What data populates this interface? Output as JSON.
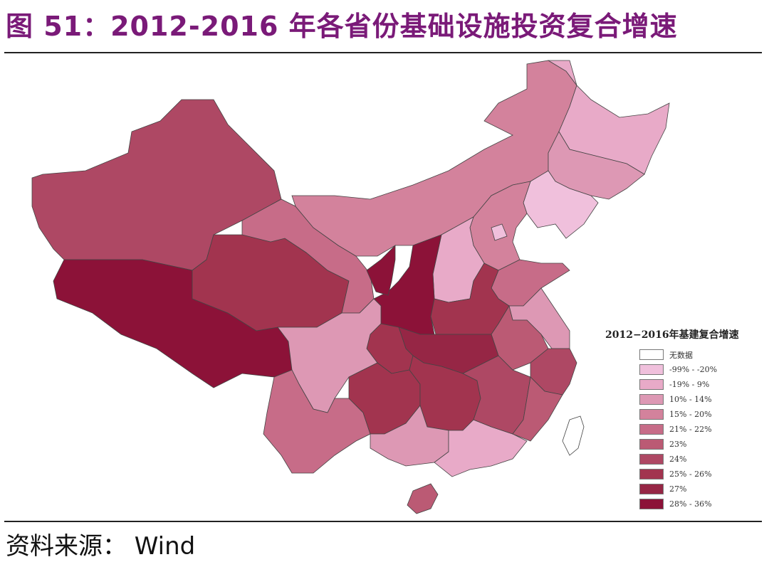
{
  "header": {
    "title": "图 51：2012-2016 年各省份基础设施投资复合增速"
  },
  "footer": {
    "source": "资料来源： Wind"
  },
  "legend": {
    "title": "2012−2016年基建复合增速",
    "items": [
      {
        "label": "无数据",
        "color": "#ffffff"
      },
      {
        "label": "-99%  -  -20%",
        "color": "#f0c0dc"
      },
      {
        "label": "-19%  -  9%",
        "color": "#e8aac8"
      },
      {
        "label": "10%  -  14%",
        "color": "#dd98b4"
      },
      {
        "label": "15%  -  20%",
        "color": "#d3829c"
      },
      {
        "label": "21%  -  22%",
        "color": "#c76c88"
      },
      {
        "label": "23%",
        "color": "#bb5a74"
      },
      {
        "label": "24%",
        "color": "#ae4864"
      },
      {
        "label": "25%  -  26%",
        "color": "#a2344f"
      },
      {
        "label": "27%",
        "color": "#962645"
      },
      {
        "label": "28%  -  36%",
        "color": "#8c1238"
      }
    ]
  },
  "regions": {
    "xinjiang": 7,
    "tibet": 10,
    "qinghai": 8,
    "gansu": 5,
    "inner-mongolia": 4,
    "heilongjiang": 2,
    "jilin": 3,
    "liaoning": 1,
    "hebei": 4,
    "beijing": 1,
    "shanxi": 2,
    "shaanxi": 10,
    "ningxia": 10,
    "shandong": 5,
    "henan": 8,
    "jiangsu": 3,
    "anhui": 6,
    "hubei": 9,
    "chongqing": 8,
    "sichuan": 3,
    "yunnan": 5,
    "guizhou": 8,
    "hunan": 8,
    "guangxi": 3,
    "guangdong": 2,
    "jiangxi": 7,
    "zhejiang": 7,
    "fujian": 6,
    "hainan": 6,
    "taiwan": 0
  }
}
